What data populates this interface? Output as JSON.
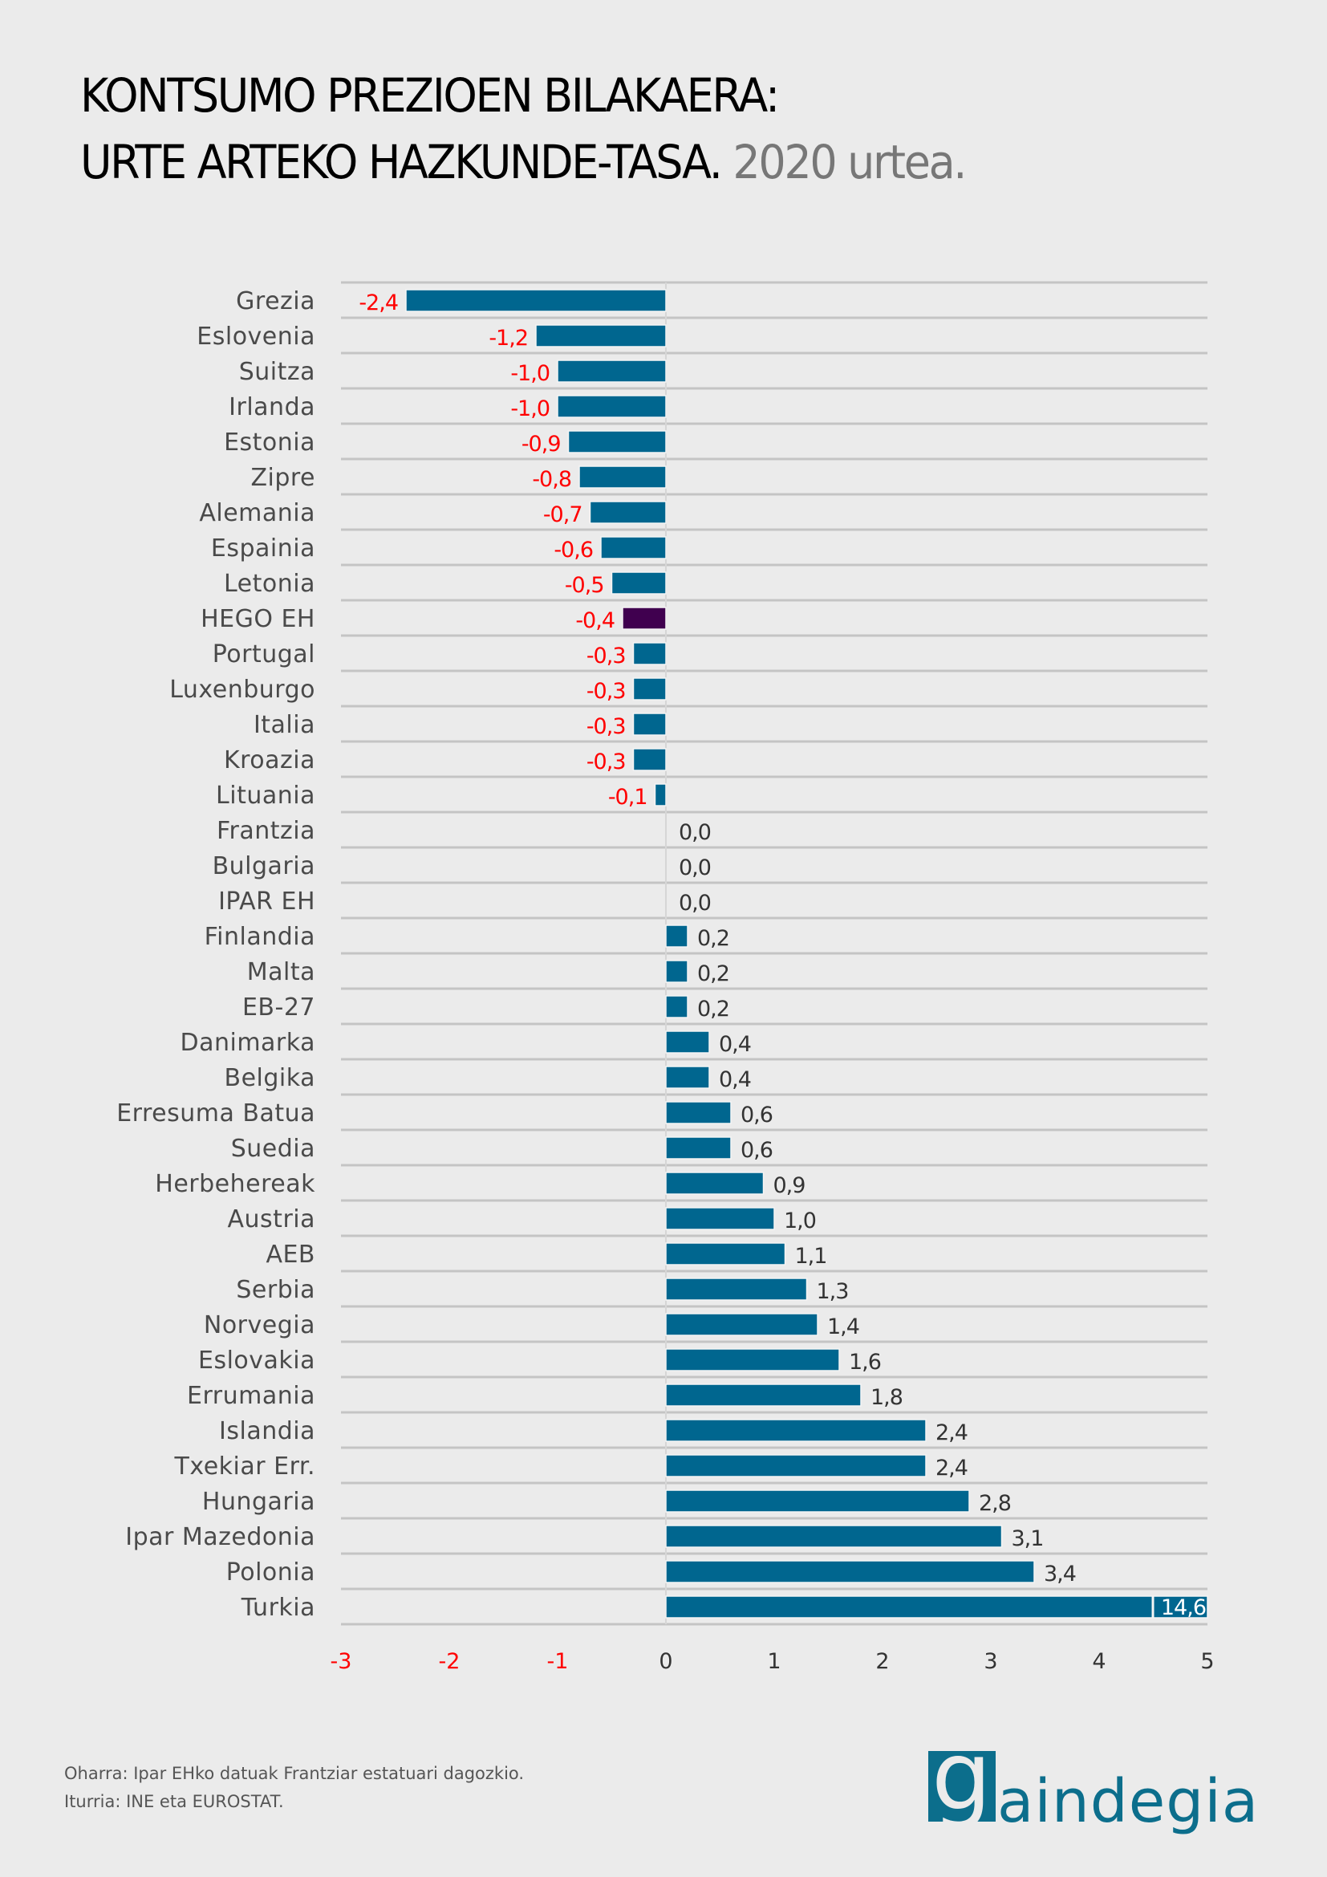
{
  "header": {
    "title_line1": "KONTSUMO PREZIOEN BILAKAERA:",
    "title_line2": "URTE ARTEKO HAZKUNDE-TASA.",
    "title_year": "2020 urtea."
  },
  "footer": {
    "note": "Oharra: Ipar EHko datuak Frantziar estatuari dagozkio.",
    "source": "Iturria: INE eta EUROSTAT."
  },
  "logo": {
    "initial": "g",
    "rest": "aindegia",
    "color": "#0c6e8c"
  },
  "colors": {
    "bar": "#00668f",
    "highlight_bar": "#40004f",
    "negative_text": "#ff0000",
    "positive_text": "#333333",
    "gridline": "#c4c4c4",
    "background": "#ebebeb"
  },
  "chart_data": {
    "type": "bar",
    "orientation": "horizontal",
    "title": "KONTSUMO PREZIOEN BILAKAERA: URTE ARTEKO HAZKUNDE-TASA. 2020 urtea.",
    "xlabel": "",
    "ylabel": "",
    "xlim": [
      -3,
      5
    ],
    "xticks": [
      -3,
      -2,
      -1,
      0,
      1,
      2,
      3,
      4,
      5
    ],
    "xtick_labels": [
      "-3",
      "-2",
      "-1",
      "0",
      "1",
      "2",
      "3",
      "4",
      "5"
    ],
    "grid": true,
    "legend": "none",
    "highlight": "HEGO EH",
    "axis_break_note": "Turkia bar truncated at axis max; actual value labelled 14,6",
    "categories": [
      "Grezia",
      "Eslovenia",
      "Suitza",
      "Irlanda",
      "Estonia",
      "Zipre",
      "Alemania",
      "Espainia",
      "Letonia",
      "HEGO EH",
      "Portugal",
      "Luxenburgo",
      "Italia",
      "Kroazia",
      "Lituania",
      "Frantzia",
      "Bulgaria",
      "IPAR EH",
      "Finlandia",
      "Malta",
      "EB-27",
      "Danimarka",
      "Belgika",
      "Erresuma Batua",
      "Suedia",
      "Herbehereak",
      "Austria",
      "AEB",
      "Serbia",
      "Norvegia",
      "Eslovakia",
      "Errumania",
      "Islandia",
      "Txekiar Err.",
      "Hungaria",
      "Ipar Mazedonia",
      "Polonia",
      "Turkia"
    ],
    "values": [
      -2.4,
      -1.2,
      -1.0,
      -1.0,
      -0.9,
      -0.8,
      -0.7,
      -0.6,
      -0.5,
      -0.4,
      -0.3,
      -0.3,
      -0.3,
      -0.3,
      -0.1,
      0.0,
      0.0,
      0.0,
      0.2,
      0.2,
      0.2,
      0.4,
      0.4,
      0.6,
      0.6,
      0.9,
      1.0,
      1.1,
      1.3,
      1.4,
      1.6,
      1.8,
      2.4,
      2.4,
      2.8,
      3.1,
      3.4,
      14.6
    ],
    "value_labels": [
      "-2,4",
      "-1,2",
      "-1,0",
      "-1,0",
      "-0,9",
      "-0,8",
      "-0,7",
      "-0,6",
      "-0,5",
      "-0,4",
      "-0,3",
      "-0,3",
      "-0,3",
      "-0,3",
      "-0,1",
      "0,0",
      "0,0",
      "0,0",
      "0,2",
      "0,2",
      "0,2",
      "0,4",
      "0,4",
      "0,6",
      "0,6",
      "0,9",
      "1,0",
      "1,1",
      "1,3",
      "1,4",
      "1,6",
      "1,8",
      "2,4",
      "2,4",
      "2,8",
      "3,1",
      "3,4",
      "14,6"
    ]
  }
}
